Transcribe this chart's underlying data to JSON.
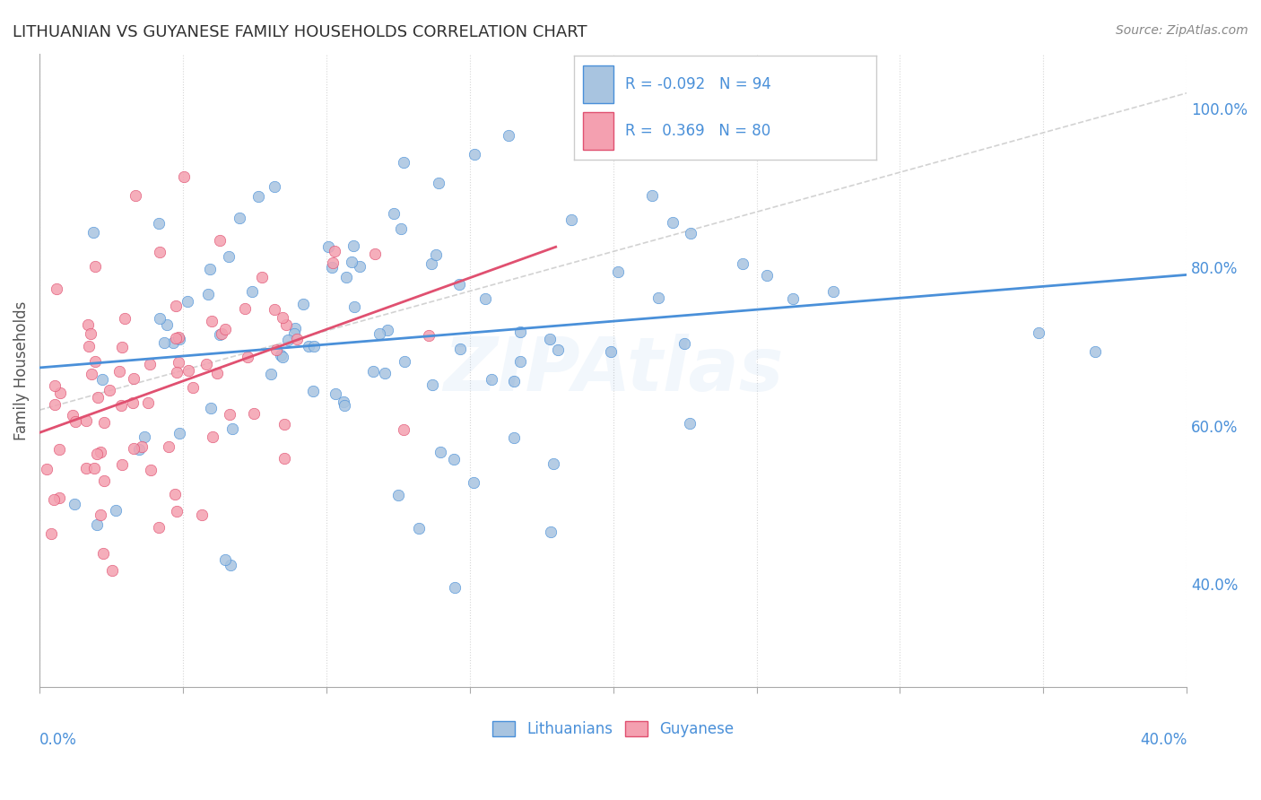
{
  "title": "LITHUANIAN VS GUYANESE FAMILY HOUSEHOLDS CORRELATION CHART",
  "source": "Source: ZipAtlas.com",
  "ylabel": "Family Households",
  "y_ticks": [
    "40.0%",
    "60.0%",
    "80.0%",
    "100.0%"
  ],
  "y_tick_vals": [
    0.4,
    0.6,
    0.8,
    1.0
  ],
  "xlim": [
    0.0,
    0.4
  ],
  "ylim": [
    0.27,
    1.07
  ],
  "blue_R": -0.092,
  "blue_N": 94,
  "pink_R": 0.369,
  "pink_N": 80,
  "blue_color": "#a8c4e0",
  "pink_color": "#f4a0b0",
  "blue_line_color": "#4a90d9",
  "pink_line_color": "#e05070",
  "diag_line_color": "#c0c0c0",
  "legend_box_blue": "#a8c4e0",
  "legend_box_pink": "#f4a0b0",
  "legend_text_color": "#4a90d9",
  "title_color": "#303030",
  "axis_label_color": "#4a90d9",
  "watermark": "ZIPAtlas",
  "seed": 42
}
